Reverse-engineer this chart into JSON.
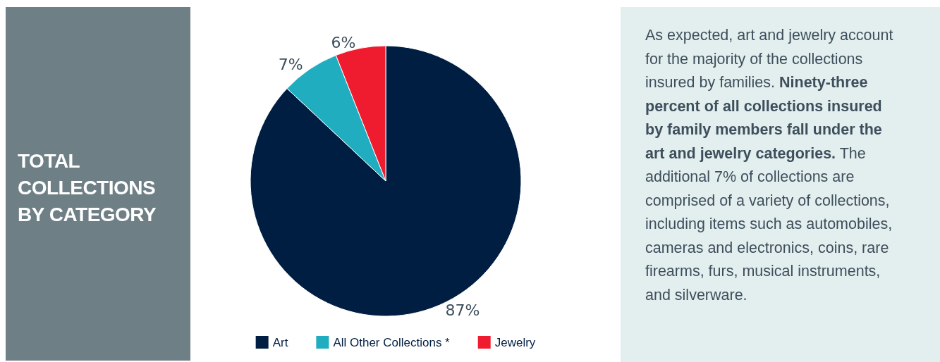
{
  "chart_data": {
    "type": "pie",
    "title": "TOTAL COLLECTIONS BY CATEGORY",
    "categories": [
      "Art",
      "All Other Collections *",
      "Jewelry"
    ],
    "values": [
      87,
      7,
      6
    ],
    "colors": [
      "#001e41",
      "#20adc0",
      "#ee1c2e"
    ],
    "value_labels": [
      "87%",
      "7%",
      "6%"
    ],
    "legend": "bottom",
    "annotations": [
      "As expected, art and jewelry account for the majority of the collections insured by families.",
      "Ninety-three percent of all collections insured by family members fall under the art and jewelry categories.",
      "The additional 7% of collections are comprised of a variety of collections, including items such as automobiles, cameras and electronics, coins, rare firearms, furs, musical instruments, and silverware."
    ]
  }
}
